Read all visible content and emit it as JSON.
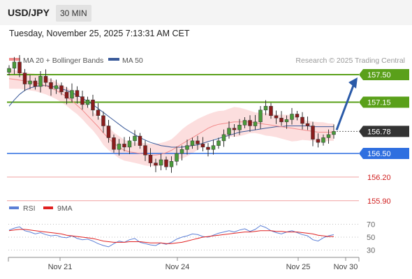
{
  "header": {
    "symbol": "USD/JPY",
    "timeframe": "30 MIN",
    "datetime": "Tuesday, November 25, 2025 7:13:31 AM CET"
  },
  "legend": {
    "ma20_label": "MA 20 + Bollinger Bands",
    "ma50_label": "MA 50",
    "credit": "Research © 2025 Trading Central",
    "colors": {
      "ma20": "#f28b8b",
      "ma50": "#3a5a9a",
      "bands": "#fcd8d8"
    }
  },
  "rsi_legend": {
    "rsi_label": "RSI",
    "ma_label": "9MA",
    "colors": {
      "rsi": "#5b7fd6",
      "ma": "#e02020"
    }
  },
  "chart_data": [
    {
      "type": "line",
      "title": "USD/JPY",
      "x": [
        "Nov 21",
        "Nov 24",
        "Nov 25",
        "Nov 30"
      ],
      "price_axis_range": [
        155.7,
        157.9
      ],
      "current_price": 156.78,
      "levels": [
        {
          "label": "157.50",
          "value": 157.5,
          "color": "#5aa01a",
          "kind": "resistance"
        },
        {
          "label": "157.15",
          "value": 157.15,
          "color": "#5aa01a",
          "kind": "resistance"
        },
        {
          "label": "156.78",
          "value": 156.78,
          "color": "#333333",
          "kind": "current"
        },
        {
          "label": "156.50",
          "value": 156.5,
          "color": "#2f6fe0",
          "kind": "pivot"
        },
        {
          "label": "156.20",
          "value": 156.2,
          "color": "#e03030",
          "kind": "support"
        },
        {
          "label": "155.90",
          "value": 155.9,
          "color": "#e03030",
          "kind": "support"
        }
      ],
      "target_arrow": {
        "from": 156.78,
        "to": 157.5
      },
      "close_series": [
        157.58,
        157.66,
        157.52,
        157.38,
        157.42,
        157.35,
        157.48,
        157.4,
        157.32,
        157.36,
        157.28,
        157.2,
        157.3,
        157.22,
        157.12,
        157.18,
        157.05,
        156.98,
        156.85,
        156.7,
        156.55,
        156.62,
        156.58,
        156.66,
        156.72,
        156.6,
        156.48,
        156.38,
        156.35,
        156.42,
        156.33,
        156.4,
        156.5,
        156.55,
        156.6,
        156.66,
        156.62,
        156.58,
        156.55,
        156.6,
        156.66,
        156.74,
        156.82,
        156.8,
        156.86,
        156.92,
        156.85,
        156.9,
        157.05,
        157.1,
        156.98,
        156.95,
        156.9,
        156.93,
        157.0,
        156.96,
        156.88,
        156.85,
        156.68,
        156.64,
        156.7,
        156.74,
        156.78
      ],
      "ma20_series": [
        157.45,
        157.44,
        157.43,
        157.42,
        157.41,
        157.4,
        157.38,
        157.36,
        157.33,
        157.3,
        157.26,
        157.22,
        157.17,
        157.11,
        157.05,
        156.98,
        156.91,
        156.84,
        156.76,
        156.69,
        156.63,
        156.58,
        156.54,
        156.52,
        156.51,
        156.5,
        156.49,
        156.48,
        156.48,
        156.49,
        156.51,
        156.54,
        156.58,
        156.62,
        156.66,
        156.7,
        156.74,
        156.78,
        156.82,
        156.85,
        156.87,
        156.88,
        156.89,
        156.9,
        156.9,
        156.9,
        156.9,
        156.89,
        156.88,
        156.87,
        156.86,
        156.85,
        156.84,
        156.83,
        156.82,
        156.81,
        156.8,
        156.79,
        156.78,
        156.77,
        156.77,
        156.77,
        156.77
      ],
      "ma50_series": [
        157.1,
        157.18,
        157.25,
        157.3,
        157.33,
        157.35,
        157.36,
        157.36,
        157.35,
        157.34,
        157.32,
        157.3,
        157.27,
        157.24,
        157.2,
        157.16,
        157.12,
        157.07,
        157.02,
        156.97,
        156.92,
        156.87,
        156.82,
        156.78,
        156.74,
        156.7,
        156.67,
        156.64,
        156.62,
        156.6,
        156.59,
        156.58,
        156.58,
        156.58,
        156.59,
        156.6,
        156.61,
        156.63,
        156.65,
        156.67,
        156.69,
        156.71,
        156.73,
        156.75,
        156.77,
        156.78,
        156.79,
        156.8,
        156.81,
        156.82,
        156.83,
        156.84,
        156.84,
        156.85,
        156.85,
        156.85,
        156.85,
        156.85,
        156.84,
        156.84,
        156.84,
        156.84,
        156.84
      ]
    },
    {
      "type": "line",
      "title": "RSI",
      "y_ticks": [
        30,
        50,
        70
      ],
      "ylim": [
        20,
        80
      ],
      "rsi_series": [
        61,
        64,
        66,
        60,
        58,
        55,
        57,
        54,
        52,
        53,
        50,
        49,
        52,
        48,
        46,
        47,
        44,
        40,
        37,
        35,
        40,
        44,
        42,
        46,
        48,
        42,
        40,
        38,
        37,
        41,
        39,
        42,
        47,
        50,
        52,
        55,
        54,
        51,
        50,
        53,
        56,
        58,
        60,
        58,
        61,
        63,
        59,
        62,
        68,
        65,
        60,
        57,
        55,
        58,
        60,
        57,
        54,
        52,
        46,
        44,
        49,
        52,
        54
      ],
      "ma_series": [
        60,
        61,
        62,
        62,
        61,
        60,
        59,
        58,
        57,
        56,
        55,
        53,
        52,
        51,
        50,
        49,
        48,
        46,
        44,
        43,
        42,
        42,
        42,
        43,
        43,
        43,
        42,
        41,
        41,
        41,
        40,
        40,
        41,
        42,
        44,
        46,
        48,
        50,
        51,
        52,
        53,
        54,
        55,
        56,
        57,
        58,
        58,
        59,
        60,
        60,
        60,
        59,
        59,
        58,
        58,
        58,
        57,
        56,
        55,
        53,
        52,
        51,
        51
      ]
    },
    {
      "type": "table",
      "title": "x-axis",
      "x_ticks": [
        "Nov 21",
        "Nov 24",
        "Nov 25",
        "Nov 30"
      ]
    }
  ]
}
